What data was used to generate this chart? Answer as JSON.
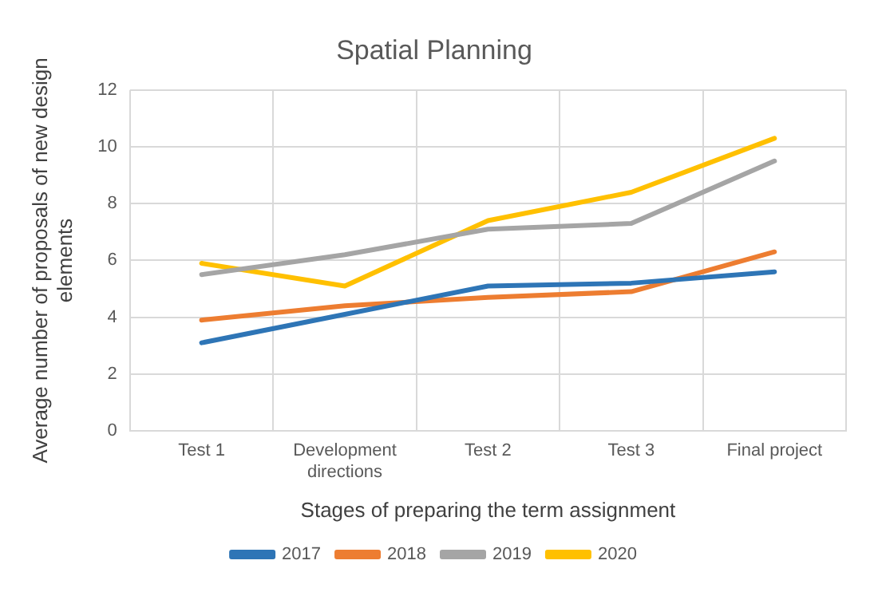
{
  "chart_data": {
    "type": "line",
    "title": "Spatial Planning",
    "xlabel": "Stages of preparing the term assignment",
    "ylabel": "Average number of proposals of new design elements",
    "categories": [
      "Test 1",
      "Development directions",
      "Test 2",
      "Test 3",
      "Final project"
    ],
    "series": [
      {
        "name": "2017",
        "color": "#2e75b6",
        "values": [
          3.1,
          4.1,
          5.1,
          5.2,
          5.6
        ]
      },
      {
        "name": "2018",
        "color": "#ed7d31",
        "values": [
          3.9,
          4.4,
          4.7,
          4.9,
          6.3
        ]
      },
      {
        "name": "2019",
        "color": "#a5a5a5",
        "values": [
          5.5,
          6.2,
          7.1,
          7.3,
          9.5
        ]
      },
      {
        "name": "2020",
        "color": "#ffc000",
        "values": [
          5.9,
          5.1,
          7.4,
          8.4,
          10.3
        ]
      }
    ],
    "ylim": [
      0,
      12
    ],
    "yticks": [
      0,
      2,
      4,
      6,
      8,
      10,
      12
    ],
    "grid": true,
    "legend": "bottom",
    "marker": "none",
    "line_style": "solid"
  }
}
